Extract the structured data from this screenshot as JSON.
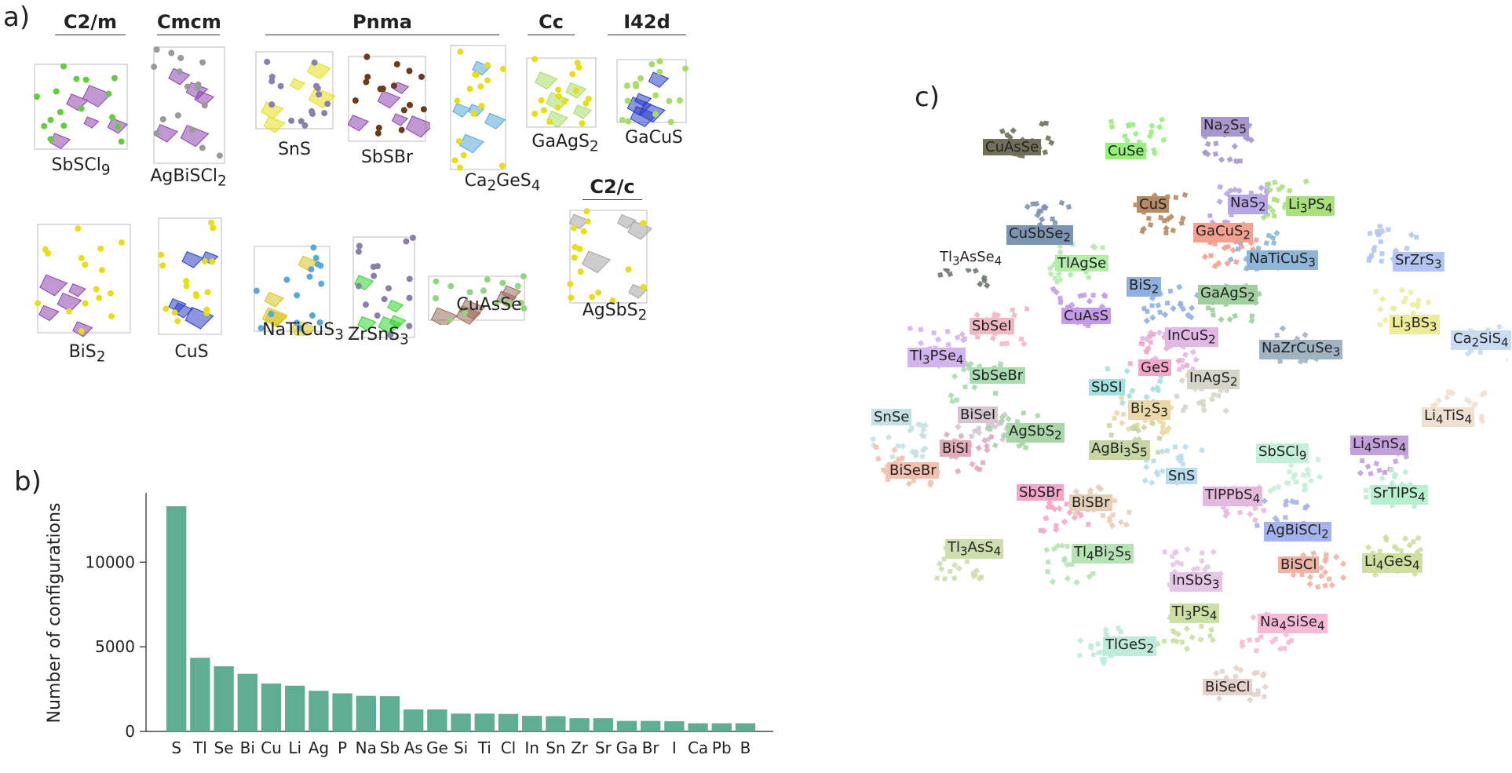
{
  "panel_a": {
    "letter": "a)",
    "groups": [
      {
        "name": "C2/m"
      },
      {
        "name": "Cmcm"
      },
      {
        "name": "Pnma"
      },
      {
        "name": "Cc"
      },
      {
        "name": "I42d"
      },
      {
        "name": "C2/c"
      }
    ],
    "structures": [
      {
        "label": "SbSCl9",
        "html": "SbSCl<sub>9</sub>",
        "colors": [
          "#8e44ad",
          "#5fcf3a"
        ]
      },
      {
        "label": "AgBiSCl2",
        "html": "AgBiSCl<sub>2</sub>",
        "colors": [
          "#8e44ad",
          "#9a9a9a"
        ]
      },
      {
        "label": "SnS",
        "html": "SnS",
        "colors": [
          "#e6de19",
          "#8b7fae"
        ]
      },
      {
        "label": "SbSBr",
        "html": "SbSBr",
        "colors": [
          "#8e44ad",
          "#6b3b1d"
        ]
      },
      {
        "label": "Ca2GeS4",
        "html": "Ca<sub>2</sub>GeS<sub>4</sub>",
        "colors": [
          "#5aa8d8",
          "#e6de19"
        ]
      },
      {
        "label": "GaAgS2",
        "html": "GaAgS<sub>2</sub>",
        "colors": [
          "#a6dc67",
          "#e6de19"
        ]
      },
      {
        "label": "GaCuS",
        "html": "GaCuS",
        "colors": [
          "#2a3fc4",
          "#a6dc67"
        ]
      },
      {
        "label": "BiS2",
        "html": "BiS<sub>2</sub>",
        "colors": [
          "#8e44ad",
          "#e6de19"
        ]
      },
      {
        "label": "CuS",
        "html": "CuS",
        "colors": [
          "#2a3fc4",
          "#e6de19"
        ]
      },
      {
        "label": "NaTiCuS3",
        "html": "NaTiCuS<sub>3</sub>",
        "colors": [
          "#d8c31f",
          "#5aa8d8"
        ]
      },
      {
        "label": "ZrSnS3",
        "html": "ZrSnS<sub>3</sub>",
        "colors": [
          "#31d62f",
          "#8b7fae"
        ]
      },
      {
        "label": "CuAsSe",
        "html": "CuAsSe",
        "colors": [
          "#9b6b5a",
          "#8fd67f"
        ]
      },
      {
        "label": "AgSbS2",
        "html": "AgSbS<sub>2</sub>",
        "colors": [
          "#a4a4a4",
          "#e6de19"
        ]
      }
    ]
  },
  "chart_data": {
    "type": "bar",
    "panel_letter": "b)",
    "ylabel": "Number of configurations",
    "xlabel": "",
    "categories": [
      "S",
      "Tl",
      "Se",
      "Bi",
      "Cu",
      "Li",
      "Ag",
      "P",
      "Na",
      "Sb",
      "As",
      "Ge",
      "Si",
      "Ti",
      "Cl",
      "In",
      "Sn",
      "Zr",
      "Sr",
      "Ga",
      "Br",
      "I",
      "Ca",
      "Pb",
      "B"
    ],
    "values": [
      13300,
      4350,
      3850,
      3400,
      2830,
      2700,
      2400,
      2250,
      2100,
      2080,
      1300,
      1300,
      1050,
      1050,
      1030,
      920,
      900,
      780,
      780,
      620,
      620,
      600,
      480,
      480,
      480
    ],
    "ylim": [
      0,
      14000
    ],
    "yticks": [
      0,
      5000,
      10000
    ],
    "color": "#5fae93"
  },
  "panel_c": {
    "letter": "c)",
    "labels": [
      {
        "text": "CuAsSe",
        "html": "CuAsSe",
        "bg": "#6f6f5a"
      },
      {
        "text": "CuSe",
        "html": "CuSe",
        "bg": "#95f07d"
      },
      {
        "text": "Na2S5",
        "html": "Na<sub>2</sub>S<sub>5</sub>",
        "bg": "#a897cc"
      },
      {
        "text": "CuS",
        "html": "CuS",
        "bg": "#b68a63"
      },
      {
        "text": "NaS2",
        "html": "NaS<sub>2</sub>",
        "bg": "#b7a5e4"
      },
      {
        "text": "Li3PS4",
        "html": "Li<sub>3</sub>PS<sub>4</sub>",
        "bg": "#a8e07b"
      },
      {
        "text": "CuSbSe2",
        "html": "CuSbSe<sub>2</sub>",
        "bg": "#7d94b0"
      },
      {
        "text": "GaCuS2",
        "html": "GaCuS<sub>2</sub>",
        "bg": "#f2a08f"
      },
      {
        "text": "Tl3AsSe4",
        "html": "Tl<sub>3</sub>AsSe<sub>4</sub>",
        "bg": "#ffffff"
      },
      {
        "text": "TlAgSe",
        "html": "TlAgSe",
        "bg": "#b4ecaa"
      },
      {
        "text": "NaTiCuS3",
        "html": "NaTiCuS<sub>3</sub>",
        "bg": "#8fb6d8"
      },
      {
        "text": "SrZrS3",
        "html": "SrZrS<sub>3</sub>",
        "bg": "#b3c6f3"
      },
      {
        "text": "BiS2",
        "html": "BiS<sub>2</sub>",
        "bg": "#8fb0e0"
      },
      {
        "text": "GaAgS2",
        "html": "GaAgS<sub>2</sub>",
        "bg": "#9fcf9e"
      },
      {
        "text": "SbSeI",
        "html": "SbSeI",
        "bg": "#f1b7c3"
      },
      {
        "text": "CuAsS",
        "html": "CuAsS",
        "bg": "#c39be6"
      },
      {
        "text": "Li3BS3",
        "html": "Li<sub>3</sub>BS<sub>3</sub>",
        "bg": "#ecec9b"
      },
      {
        "text": "InCuS2",
        "html": "InCuS<sub>2</sub>",
        "bg": "#e1b8e5"
      },
      {
        "text": "Ca2SiS4",
        "html": "Ca<sub>2</sub>SiS<sub>4</sub>",
        "bg": "#c9dcf2"
      },
      {
        "text": "NaZrCuSe3",
        "html": "NaZrCuSe<sub>3</sub>",
        "bg": "#a0b3c3"
      },
      {
        "text": "Tl3PSe4",
        "html": "Tl<sub>3</sub>PSe<sub>4</sub>",
        "bg": "#d3b4ef"
      },
      {
        "text": "GeS",
        "html": "GeS",
        "bg": "#f2a7c8"
      },
      {
        "text": "InAgS2",
        "html": "InAgS<sub>2</sub>",
        "bg": "#d5d5c8"
      },
      {
        "text": "SbSeBr",
        "html": "SbSeBr",
        "bg": "#a9dcb0"
      },
      {
        "text": "SbSI",
        "html": "SbSI",
        "bg": "#a3e0e0"
      },
      {
        "text": "Li4TiS4",
        "html": "Li<sub>4</sub>TiS<sub>4</sub>",
        "bg": "#f0e0d2"
      },
      {
        "text": "SnSe",
        "html": "SnSe",
        "bg": "#c6e1e3"
      },
      {
        "text": "BiSeI",
        "html": "BiSeI",
        "bg": "#d6c5d1"
      },
      {
        "text": "Bi2S3",
        "html": "Bi<sub>2</sub>S<sub>3</sub>",
        "bg": "#ead9a6"
      },
      {
        "text": "AgSbS2",
        "html": "AgSbS<sub>2</sub>",
        "bg": "#a8d6a8"
      },
      {
        "text": "AgBi3S5",
        "html": "AgBi<sub>3</sub>S<sub>5</sub>",
        "bg": "#c7d6a4"
      },
      {
        "text": "SbSCl9",
        "html": "SbSCl<sub>9</sub>",
        "bg": "#c4efd8"
      },
      {
        "text": "Li4SnS4",
        "html": "Li<sub>4</sub>SnS<sub>4</sub>",
        "bg": "#c3a0d9"
      },
      {
        "text": "BiSI",
        "html": "BiSI",
        "bg": "#e0aab9"
      },
      {
        "text": "BiSeBr",
        "html": "BiSeBr",
        "bg": "#f2c0ae"
      },
      {
        "text": "SnS",
        "html": "SnS",
        "bg": "#b8ddea"
      },
      {
        "text": "SbSBr",
        "html": "SbSBr",
        "bg": "#f5a5c8"
      },
      {
        "text": "TlPPbS4",
        "html": "TlPPbS<sub>4</sub>",
        "bg": "#e5b9dd"
      },
      {
        "text": "BiSBr",
        "html": "BiSBr",
        "bg": "#e6cfb8"
      },
      {
        "text": "SrTlPS4",
        "html": "SrTlPS<sub>4</sub>",
        "bg": "#b8efcf"
      },
      {
        "text": "AgBiSCl2",
        "html": "AgBiSCl<sub>2</sub>",
        "bg": "#a5b3ec"
      },
      {
        "text": "Tl3AsS4",
        "html": "Tl<sub>3</sub>AsS<sub>4</sub>",
        "bg": "#cddfae"
      },
      {
        "text": "Tl4Bi2S5",
        "html": "Tl<sub>4</sub>Bi<sub>2</sub>S<sub>5</sub>",
        "bg": "#b5e3b5"
      },
      {
        "text": "BiSCl",
        "html": "BiSCl",
        "bg": "#eeb3a5"
      },
      {
        "text": "Li4GeS4",
        "html": "Li<sub>4</sub>GeS<sub>4</sub>",
        "bg": "#cfdf9f"
      },
      {
        "text": "InSbS3",
        "html": "InSbS<sub>3</sub>",
        "bg": "#e5c6e5"
      },
      {
        "text": "Tl3PS4",
        "html": "Tl<sub>3</sub>PS<sub>4</sub>",
        "bg": "#ccdfa4"
      },
      {
        "text": "Na4SiSe4",
        "html": "Na<sub>4</sub>SiSe<sub>4</sub>",
        "bg": "#f7bad6"
      },
      {
        "text": "TlGeS2",
        "html": "TlGeS<sub>2</sub>",
        "bg": "#bfecda"
      },
      {
        "text": "BiSeCl",
        "html": "BiSeCl",
        "bg": "#e6d2cc"
      }
    ]
  }
}
